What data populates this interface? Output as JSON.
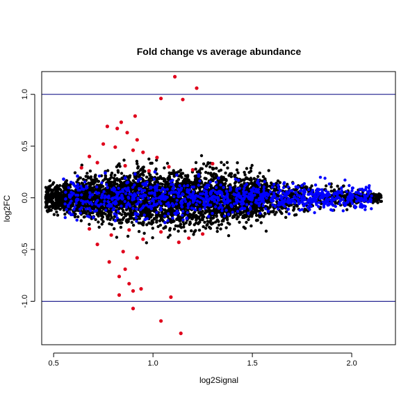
{
  "chart_data": {
    "type": "scatter",
    "title": "Fold change vs average abundance",
    "xlabel": "log2Signal",
    "ylabel": "log2FC",
    "xlim": [
      0.44,
      2.22
    ],
    "ylim": [
      -1.42,
      1.22
    ],
    "x_ticks": [
      "0.5",
      "1.0",
      "1.5",
      "2.0"
    ],
    "y_ticks": [
      "-1.0",
      "-0.5",
      "0.0",
      "0.5",
      "1.0"
    ],
    "reference_lines_y": [
      -1.0,
      1.0
    ],
    "grid": false,
    "legend": "none",
    "colors": {
      "background": "#000000",
      "highlight": "#0000ff",
      "significant": "#e0001b",
      "reference_line": "#00007f",
      "axis": "#000000"
    },
    "series": [
      {
        "color": "#e0001b",
        "points": [
          [
            1.11,
            1.17
          ],
          [
            1.22,
            1.06
          ],
          [
            1.04,
            0.96
          ],
          [
            1.15,
            0.95
          ],
          [
            0.91,
            0.79
          ],
          [
            0.84,
            0.73
          ],
          [
            0.77,
            0.69
          ],
          [
            0.82,
            0.67
          ],
          [
            0.87,
            0.63
          ],
          [
            0.92,
            0.56
          ],
          [
            0.75,
            0.52
          ],
          [
            0.81,
            0.49
          ],
          [
            0.9,
            0.46
          ],
          [
            0.68,
            0.4
          ],
          [
            0.95,
            0.44
          ],
          [
            1.02,
            0.39
          ],
          [
            0.72,
            0.34
          ],
          [
            0.86,
            0.31
          ],
          [
            1.08,
            0.3
          ],
          [
            1.2,
            0.27
          ],
          [
            0.64,
            0.29
          ],
          [
            0.98,
            0.26
          ],
          [
            0.88,
            -0.31
          ],
          [
            0.79,
            -0.36
          ],
          [
            0.95,
            -0.4
          ],
          [
            1.04,
            -0.33
          ],
          [
            1.13,
            -0.43
          ],
          [
            0.72,
            -0.45
          ],
          [
            0.85,
            -0.52
          ],
          [
            0.92,
            -0.58
          ],
          [
            0.78,
            -0.62
          ],
          [
            0.86,
            -0.69
          ],
          [
            0.83,
            -0.76
          ],
          [
            0.88,
            -0.83
          ],
          [
            0.94,
            -0.88
          ],
          [
            0.9,
            -0.9
          ],
          [
            0.83,
            -0.94
          ],
          [
            1.09,
            -0.96
          ],
          [
            0.9,
            -1.07
          ],
          [
            1.04,
            -1.19
          ],
          [
            1.14,
            -1.31
          ],
          [
            1.18,
            -0.39
          ],
          [
            1.25,
            -0.35
          ],
          [
            0.68,
            -0.3
          ],
          [
            1.3,
            0.33
          ]
        ]
      },
      {
        "color": "#0000ff",
        "points": [
          [
            0.55,
            0.18
          ],
          [
            0.58,
            -0.14
          ],
          [
            0.62,
            0.21
          ],
          [
            0.7,
            -0.19
          ],
          [
            0.76,
            0.24
          ],
          [
            0.81,
            -0.22
          ],
          [
            0.86,
            0.19
          ],
          [
            0.91,
            0.23
          ],
          [
            0.96,
            -0.21
          ],
          [
            1.01,
            0.25
          ],
          [
            1.06,
            -0.24
          ],
          [
            1.12,
            0.22
          ],
          [
            1.17,
            -0.2
          ],
          [
            1.23,
            0.21
          ],
          [
            1.28,
            -0.18
          ],
          [
            1.33,
            0.19
          ],
          [
            1.38,
            -0.16
          ],
          [
            1.43,
            0.17
          ],
          [
            1.48,
            -0.15
          ],
          [
            1.53,
            0.14
          ],
          [
            1.58,
            -0.13
          ],
          [
            1.63,
            0.12
          ],
          [
            1.68,
            -0.11
          ],
          [
            1.73,
            0.1
          ],
          [
            1.78,
            -0.09
          ],
          [
            1.83,
            0.08
          ],
          [
            1.88,
            -0.07
          ],
          [
            1.93,
            0.06
          ],
          [
            2.07,
            0.08
          ],
          [
            1.96,
            -0.05
          ]
        ]
      }
    ]
  }
}
